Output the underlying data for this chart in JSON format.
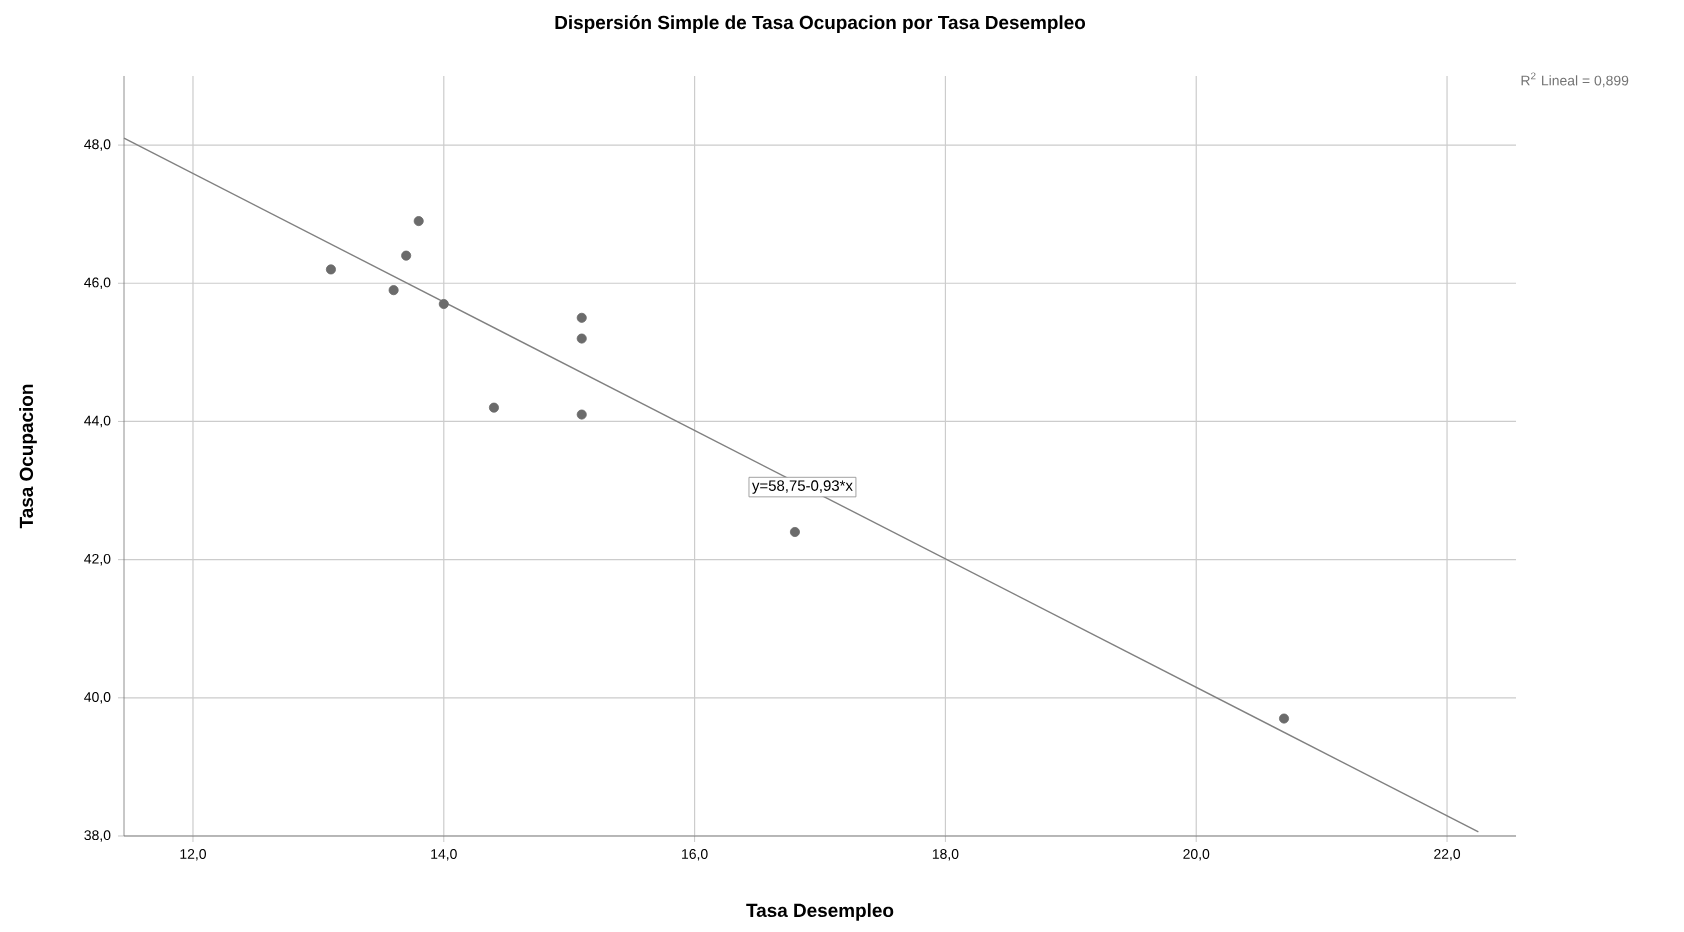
{
  "chart_data": {
    "type": "scatter",
    "title": "Dispersión Simple de Tasa Ocupacion por Tasa Desempleo",
    "xlabel": "Tasa Desempleo",
    "ylabel": "Tasa Ocupacion",
    "xlim": [
      11.45,
      22.55
    ],
    "ylim": [
      38,
      49
    ],
    "xticks": [
      {
        "value": 12,
        "label": "12,0"
      },
      {
        "value": 14,
        "label": "14,0"
      },
      {
        "value": 16,
        "label": "16,0"
      },
      {
        "value": 18,
        "label": "18,0"
      },
      {
        "value": 20,
        "label": "20,0"
      },
      {
        "value": 22,
        "label": "22,0"
      }
    ],
    "yticks": [
      {
        "value": 38,
        "label": "38,0"
      },
      {
        "value": 40,
        "label": "40,0"
      },
      {
        "value": 42,
        "label": "42,0"
      },
      {
        "value": 44,
        "label": "44,0"
      },
      {
        "value": 46,
        "label": "46,0"
      },
      {
        "value": 48,
        "label": "48,0"
      }
    ],
    "grid": true,
    "series": [
      {
        "marker": "circle",
        "color": "#6b6b6b",
        "x": [
          13.1,
          13.6,
          13.7,
          13.8,
          14.0,
          14.4,
          15.1,
          15.1,
          15.1,
          16.8,
          20.7
        ],
        "values": [
          46.2,
          45.9,
          46.4,
          46.9,
          45.7,
          44.2,
          45.5,
          45.2,
          44.1,
          42.4,
          39.7
        ]
      },
      {
        "type": "line",
        "marker": "none",
        "color": "#808080",
        "x": [
          11.45,
          22.25
        ],
        "values": [
          48.1,
          38.06
        ]
      }
    ],
    "annotations": [
      {
        "text": "y=58,75-0,93*x",
        "x": 16.86,
        "y": 43.05
      },
      "R$^{2}$ Lineal = 0,899"
    ]
  }
}
